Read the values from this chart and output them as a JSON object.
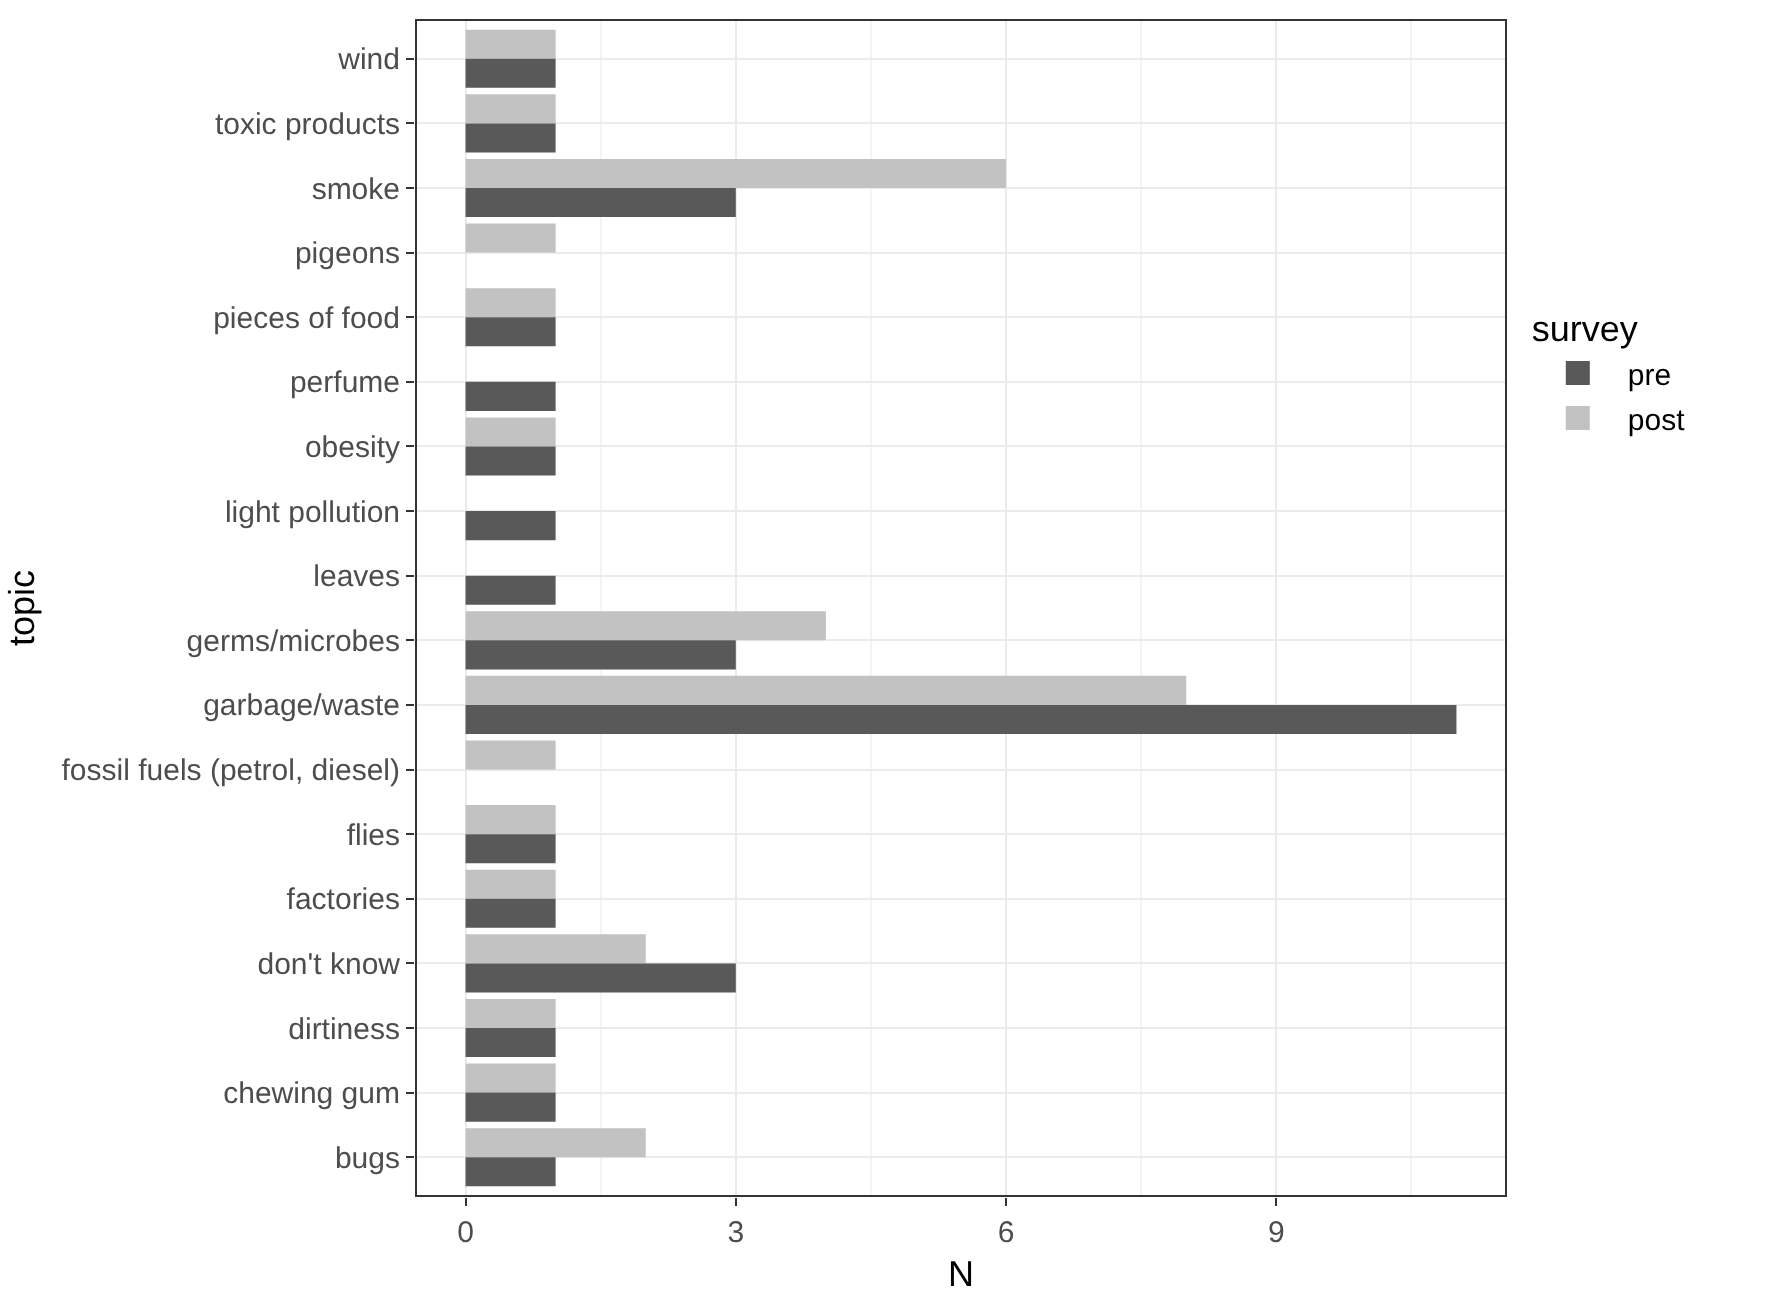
{
  "chart_data": {
    "type": "bar",
    "orientation": "horizontal",
    "xlabel": "N",
    "ylabel": "topic",
    "legend_title": "survey",
    "legend": "right",
    "grid": true,
    "categories": [
      "wind",
      "toxic products",
      "smoke",
      "pigeons",
      "pieces of food",
      "perfume",
      "obesity",
      "light pollution",
      "leaves",
      "germs/microbes",
      "garbage/waste",
      "fossil fuels (petrol, diesel)",
      "flies",
      "factories",
      "don't know",
      "dirtiness",
      "chewing gum",
      "bugs"
    ],
    "series": [
      {
        "name": "pre",
        "color": "#595959",
        "values": [
          1,
          1,
          3,
          null,
          1,
          1,
          1,
          1,
          1,
          3,
          11,
          null,
          1,
          1,
          3,
          1,
          1,
          1
        ]
      },
      {
        "name": "post",
        "color": "#c2c2c2",
        "values": [
          1,
          1,
          6,
          1,
          1,
          null,
          1,
          null,
          null,
          4,
          8,
          1,
          1,
          1,
          2,
          1,
          1,
          2
        ]
      }
    ],
    "xlim": [
      -0.55,
      11.55
    ],
    "xticks": [
      0,
      3,
      6,
      9
    ]
  }
}
